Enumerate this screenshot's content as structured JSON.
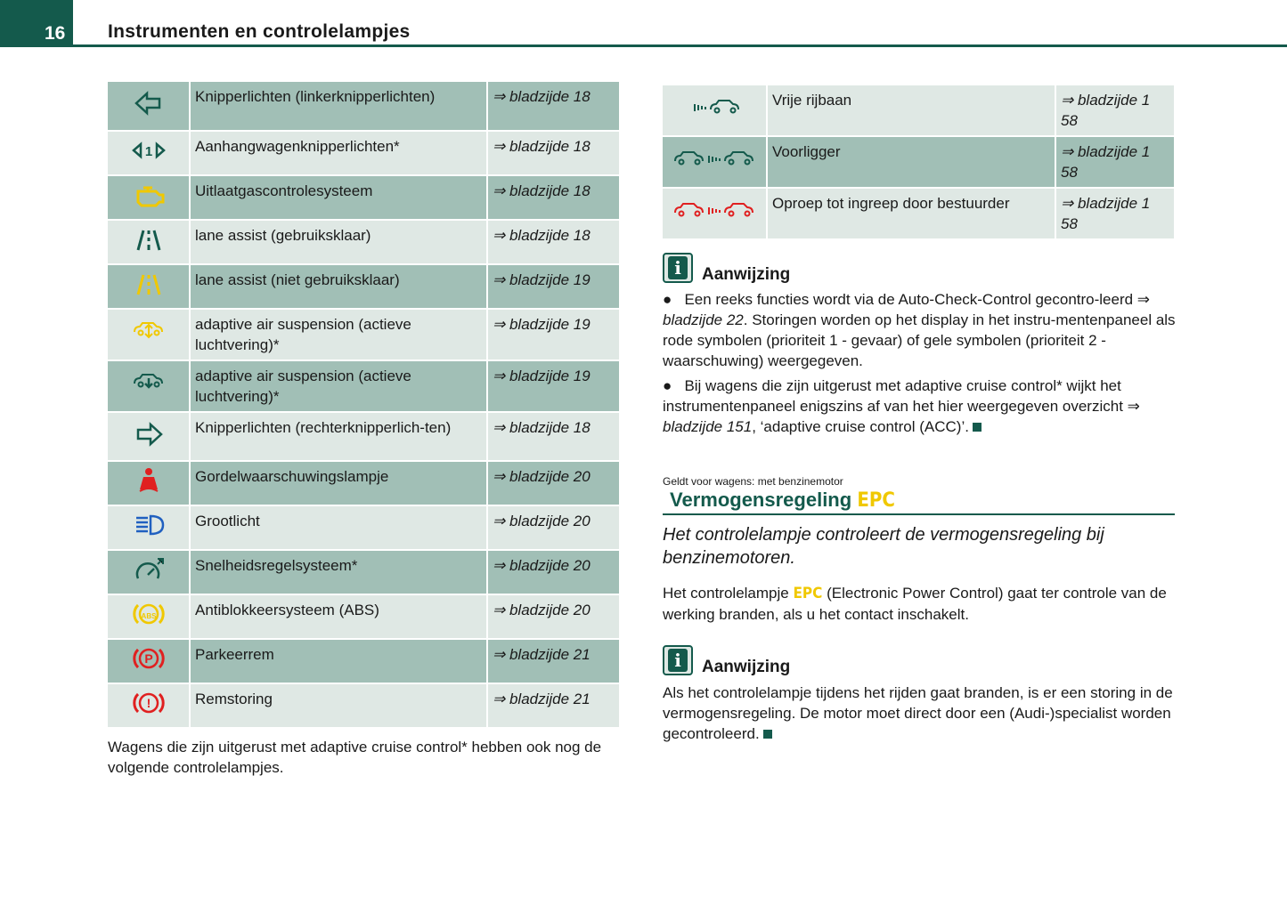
{
  "header": {
    "page_number": "16",
    "title": "Instrumenten en controlelampjes"
  },
  "left_table": [
    {
      "icon": "turn-left-icon",
      "label": "Knipperlichten (linkerknipperlichten)",
      "ref": "⇒ bladzijde 18"
    },
    {
      "icon": "trailer-turn-signal-icon",
      "label": "Aanhangwagenknipperlichten*",
      "ref": "⇒ bladzijde 18"
    },
    {
      "icon": "engine-icon",
      "label": "Uitlaatgascontrolesysteem",
      "ref": "⇒ bladzijde 18"
    },
    {
      "icon": "lane-assist-icon",
      "label": "lane assist (gebruiksklaar)",
      "ref": "⇒ bladzijde 18"
    },
    {
      "icon": "lane-assist-yellow-icon",
      "label": "lane assist (niet gebruiksklaar)",
      "ref": "⇒ bladzijde 19"
    },
    {
      "icon": "air-suspension-yellow-icon",
      "label": "adaptive air suspension (actieve luchtvering)*",
      "ref": "⇒ bladzijde 19"
    },
    {
      "icon": "air-suspension-green-icon",
      "label": "adaptive air suspension (actieve luchtvering)*",
      "ref": "⇒ bladzijde 19"
    },
    {
      "icon": "turn-right-icon",
      "label": "Knipperlichten (rechterknipperlich-ten)",
      "ref": "⇒ bladzijde 18"
    },
    {
      "icon": "seatbelt-icon",
      "label": "Gordelwaarschuwingslampje",
      "ref": "⇒ bladzijde 20"
    },
    {
      "icon": "high-beam-icon",
      "label": "Grootlicht",
      "ref": "⇒ bladzijde 20"
    },
    {
      "icon": "cruise-control-icon",
      "label": "Snelheidsregelsysteem*",
      "ref": "⇒ bladzijde 20"
    },
    {
      "icon": "abs-icon",
      "label": "Antiblokkeersysteem (ABS)",
      "ref": "⇒ bladzijde 20"
    },
    {
      "icon": "parking-brake-icon",
      "label": "Parkeerrem",
      "ref": "⇒ bladzijde 21"
    },
    {
      "icon": "brake-fault-icon",
      "label": "Remstoring",
      "ref": "⇒ bladzijde 21"
    }
  ],
  "left_note": "Wagens die zijn uitgerust met adaptive cruise control* hebben ook nog de volgende controlelampjes.",
  "right_table": [
    {
      "icon": "free-lane-icon",
      "label": "Vrije rijbaan",
      "ref": "⇒ bladzijde 1 58"
    },
    {
      "icon": "vehicle-ahead-icon",
      "label": "Voorligger",
      "ref": "⇒ bladzijde 1 58"
    },
    {
      "icon": "driver-intervention-icon",
      "label": "Oproep tot ingreep door bestuurder",
      "ref": "⇒ bladzijde 1 58"
    }
  ],
  "note1": {
    "title": "Aanwijzing",
    "b1_a": "Een reeks functies wordt via de Auto-Check-Control gecontro-leerd ⇒ ",
    "b1_ref": "bladzijde 22",
    "b1_b": ". Storingen worden op het display in het instru-mentenpaneel als rode symbolen (prioriteit 1 - gevaar) of gele symbolen (prioriteit 2 - waarschuwing) weergegeven.",
    "b2_a": "Bij wagens die zijn uitgerust met adaptive cruise control* wijkt het instrumentenpaneel enigszins af van het hier weergegeven overzicht ⇒ ",
    "b2_ref": "bladzijde 151",
    "b2_b": ", ‘adaptive cruise control (ACC)’."
  },
  "section": {
    "applies": "Geldt voor wagens: met benzinemotor",
    "title": "Vermogensregeling",
    "epc": "EPC",
    "intro": "Het controlelampje controleert de vermogensregeling bij benzinemotoren.",
    "body_a": "Het controlelampje ",
    "body_b": " (Electronic Power Control) gaat ter controle van de werking branden, als u het contact inschakelt."
  },
  "note2": {
    "title": "Aanwijzing",
    "text": "Als het controlelampje tijdens het rijden gaat branden, is er een storing in de vermogensregeling. De motor moet direct door een (Audi-)specialist worden gecontroleerd."
  },
  "colors": {
    "brand": "#145a4c",
    "row_dark": "#a1bfb6",
    "row_light": "#dfe8e4",
    "warning_yellow": "#f0c800",
    "warning_red": "#e02020",
    "info_blue": "#2060c0"
  }
}
